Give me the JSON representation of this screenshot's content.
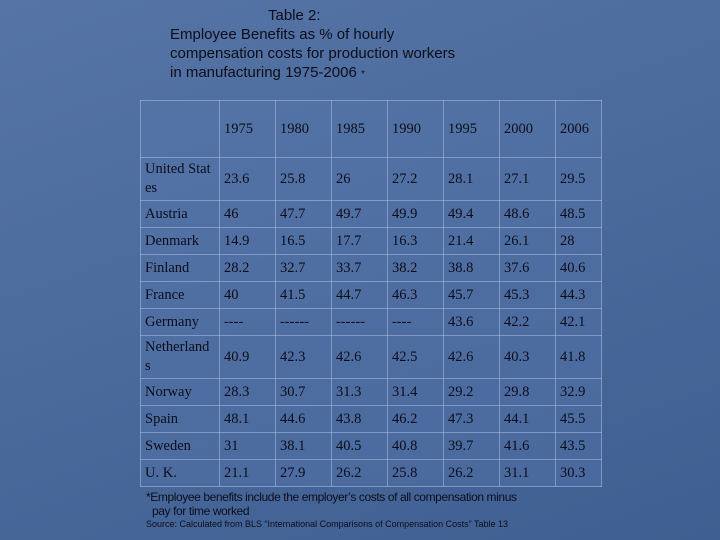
{
  "header": {
    "title_lines": [
      "Table 2:",
      "Employee Benefits  as % of hourly",
      "compensation  costs for production workers",
      "in manufacturing 1975-2006"
    ],
    "title_mark": "*"
  },
  "table": {
    "columns": [
      "1975",
      "1980",
      "1985",
      "1990",
      "1995",
      "2000",
      "2006"
    ],
    "rows": [
      [
        "United States",
        23.6,
        25.8,
        26,
        27.2,
        28.1,
        27.1,
        29.5
      ],
      [
        "Austria",
        46,
        47.7,
        49.7,
        49.9,
        49.4,
        48.6,
        48.5
      ],
      [
        "Denmark",
        14.9,
        16.5,
        17.7,
        16.3,
        21.4,
        26.1,
        28
      ],
      [
        "Finland",
        28.2,
        32.7,
        33.7,
        38.2,
        38.8,
        37.6,
        40.6
      ],
      [
        "France",
        40,
        41.5,
        44.7,
        46.3,
        45.7,
        45.3,
        44.3
      ],
      [
        "Germany",
        "----",
        "------",
        "------",
        "----",
        43.6,
        42.2,
        42.1
      ],
      [
        "Netherlands",
        40.9,
        42.3,
        42.6,
        42.5,
        42.6,
        40.3,
        41.8
      ],
      [
        "Norway",
        28.3,
        30.7,
        31.3,
        31.4,
        29.2,
        29.8,
        32.9
      ],
      [
        "Spain",
        48.1,
        44.6,
        43.8,
        46.2,
        47.3,
        44.1,
        45.5
      ],
      [
        "Sweden",
        31,
        38.1,
        40.5,
        40.8,
        39.7,
        41.6,
        43.5
      ],
      [
        "U. K.",
        21.1,
        27.9,
        26.2,
        25.8,
        26.2,
        31.1,
        30.3
      ]
    ]
  },
  "footnote": {
    "lines": [
      "*Employee benefits include the employer’s costs of all compensation minus",
      "pay for time worked"
    ],
    "source": "Source: Calculated from BLS “International Comparisons of Compensation Costs” Table 13"
  }
}
